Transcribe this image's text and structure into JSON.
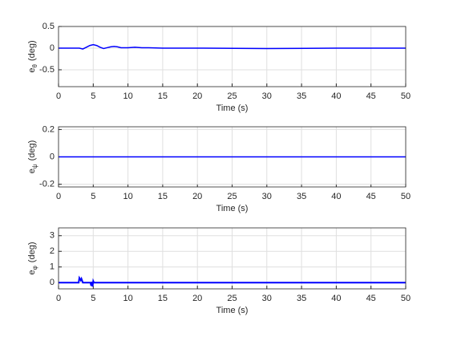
{
  "chart_data": [
    {
      "type": "line",
      "xlabel": "Time (s)",
      "ylabel_base": "e",
      "ylabel_sub": "θ",
      "ylabel_rest": "(deg)",
      "xlim": [
        0,
        50
      ],
      "xticks": [
        0,
        5,
        10,
        15,
        20,
        25,
        30,
        35,
        40,
        45,
        50
      ],
      "ylim": [
        -0.89,
        0.5
      ],
      "yticks": [
        -0.5,
        0,
        0.5
      ],
      "grid": true,
      "color": "#0000ff",
      "line_width": 1.5,
      "x": [
        0,
        2,
        3,
        3.5,
        4,
        4.5,
        5,
        5.5,
        6,
        6.5,
        7,
        7.5,
        8,
        8.5,
        9,
        10,
        11,
        12,
        13,
        15,
        20,
        30,
        40,
        50
      ],
      "values": [
        0,
        0,
        0,
        -0.02,
        0.02,
        0.06,
        0.08,
        0.06,
        0.02,
        -0.01,
        0.01,
        0.03,
        0.04,
        0.03,
        0.01,
        0.01,
        0.02,
        0.01,
        0.01,
        0,
        0,
        -0.01,
        0,
        0
      ]
    },
    {
      "type": "line",
      "xlabel": "Time (s)",
      "ylabel_base": "e",
      "ylabel_sub": "ψ",
      "ylabel_rest": "(deg)",
      "xlim": [
        0,
        50
      ],
      "xticks": [
        0,
        5,
        10,
        15,
        20,
        25,
        30,
        35,
        40,
        45,
        50
      ],
      "ylim": [
        -0.22,
        0.22
      ],
      "yticks": [
        -0.2,
        0,
        0.2
      ],
      "grid": true,
      "color": "#0000ff",
      "line_width": 1.5,
      "x": [
        0,
        10,
        20,
        30,
        40,
        50
      ],
      "values": [
        0,
        0,
        0,
        0,
        0,
        0
      ]
    },
    {
      "type": "line",
      "xlabel": "Time (s)",
      "ylabel_base": "e",
      "ylabel_sub": "φ",
      "ylabel_rest": "(deg)",
      "xlim": [
        0,
        50
      ],
      "xticks": [
        0,
        5,
        10,
        15,
        20,
        25,
        30,
        35,
        40,
        45,
        50
      ],
      "ylim": [
        -0.4,
        3.5
      ],
      "yticks": [
        0,
        1,
        2,
        3
      ],
      "grid": true,
      "color": "#0000ff",
      "line_width": 2,
      "x": [
        0,
        2.9,
        3,
        3.2,
        3.3,
        3.5,
        4,
        4.6,
        4.7,
        4.8,
        4.9,
        5,
        5.1,
        5.3,
        50
      ],
      "values": [
        0,
        0,
        0.3,
        0.15,
        0.25,
        0,
        0,
        0,
        -0.2,
        0.05,
        -0.25,
        0.1,
        0,
        0,
        0
      ]
    }
  ]
}
